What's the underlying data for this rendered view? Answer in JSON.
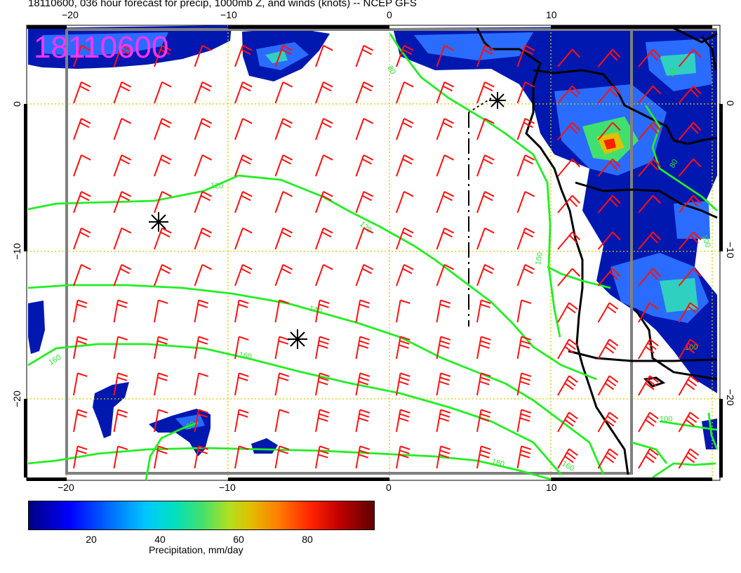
{
  "header": {
    "title": "18110600, 036 hour forecast for precip, 1000mb Z, and winds (knots) -- NCEP GFS",
    "stamp": "18110600"
  },
  "axes": {
    "lon_ticks": [
      "−20",
      "−10",
      "0",
      "10"
    ],
    "lat_ticks": [
      "0",
      "−10",
      "−20"
    ]
  },
  "contours": {
    "labels": [
      "120",
      "120",
      "140",
      "160",
      "160",
      "180",
      "160",
      "100",
      "100",
      "80",
      "80",
      "100",
      "100",
      "80",
      "80"
    ]
  },
  "colorbar": {
    "ticks": [
      "20",
      "40",
      "60",
      "80"
    ],
    "label": "Precipitation, mm/day"
  },
  "colors": {
    "stamp": "#ff33ff",
    "contour": "#22ee22",
    "barb": "#ff1010",
    "grid": "#d4c800",
    "border": "#808080",
    "precip_low": "#000080",
    "precip_high": "#600000"
  }
}
